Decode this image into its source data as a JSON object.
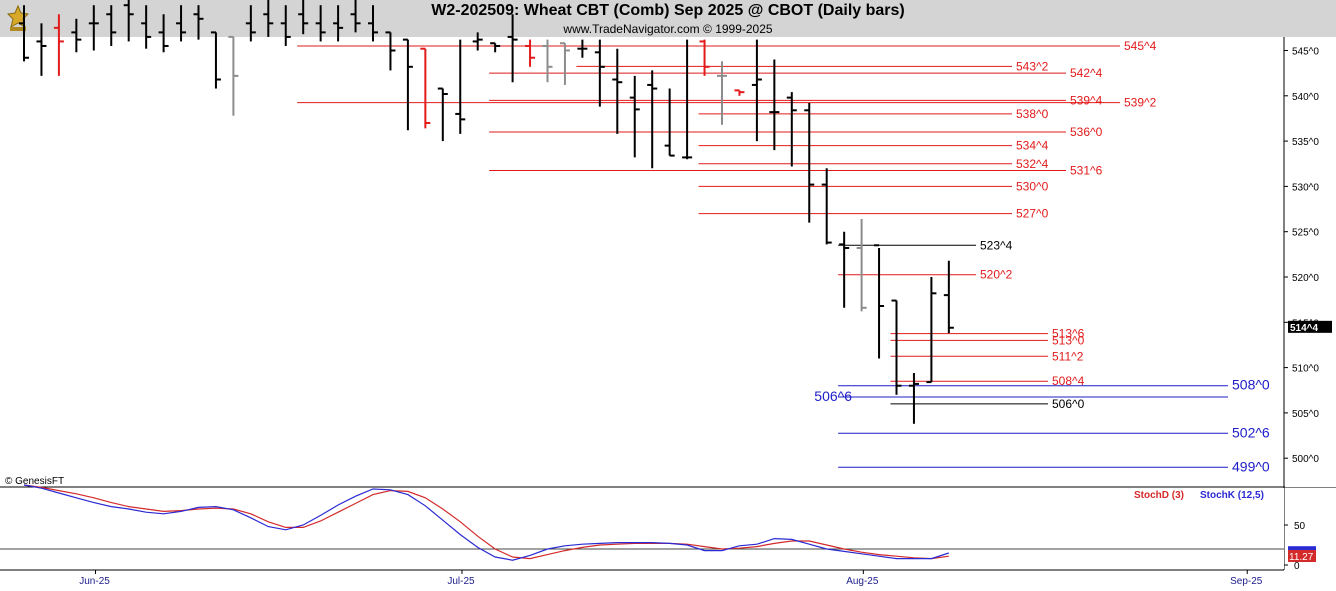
{
  "header": {
    "title": "W2-202509:  Wheat CBT (Comb) Sep 2025 @ CBOT  (Daily bars)",
    "subtitle": "www.TradeNavigator.com © 1999-2025"
  },
  "watermark": "© GenesisFT",
  "chart_data": {
    "type": "ohlc",
    "y_axis": {
      "ticks": [
        {
          "value": 545,
          "label": "545^0"
        },
        {
          "value": 540,
          "label": "540^0"
        },
        {
          "value": 535,
          "label": "535^0"
        },
        {
          "value": 530,
          "label": "530^0"
        },
        {
          "value": 525,
          "label": "525^0"
        },
        {
          "value": 520,
          "label": "520^0"
        },
        {
          "value": 515,
          "label": "515^0"
        },
        {
          "value": 510,
          "label": "510^0"
        },
        {
          "value": 505,
          "label": "505^0"
        },
        {
          "value": 500,
          "label": "500^0"
        }
      ]
    },
    "x_axis": {
      "labels": [
        {
          "label": "Jun-25",
          "bar": 4.5
        },
        {
          "label": "Jul-25",
          "bar": 25.5
        },
        {
          "label": "Aug-25",
          "bar": 48.5
        },
        {
          "label": "Sep-25",
          "bar": 70.5
        }
      ]
    },
    "last_price": {
      "label": "514^4",
      "value": 514.5
    },
    "bars": [
      {
        "o": 548,
        "h": 550,
        "l": 543.8,
        "c": 544.2,
        "color": "black"
      },
      {
        "o": 546,
        "h": 548,
        "l": 542.2,
        "c": 545.5,
        "color": "black"
      },
      {
        "o": 547.5,
        "h": 549,
        "l": 542.2,
        "c": 546,
        "color": "red"
      },
      {
        "o": 547,
        "h": 548.5,
        "l": 544.8,
        "c": 546.2,
        "color": "black"
      },
      {
        "o": 548,
        "h": 550,
        "l": 545,
        "c": 548,
        "color": "black"
      },
      {
        "o": 549,
        "h": 550,
        "l": 545.5,
        "c": 547,
        "color": "black"
      },
      {
        "o": 550,
        "h": 551,
        "l": 546,
        "c": 549,
        "color": "black"
      },
      {
        "o": 548,
        "h": 550,
        "l": 545.2,
        "c": 546.5,
        "color": "black"
      },
      {
        "o": 547,
        "h": 549,
        "l": 544.8,
        "c": 545.5,
        "color": "black"
      },
      {
        "o": 548,
        "h": 550,
        "l": 546,
        "c": 547,
        "color": "black"
      },
      {
        "o": 549,
        "h": 550,
        "l": 546.2,
        "c": 548.5,
        "color": "black"
      },
      {
        "o": 547,
        "h": 547,
        "l": 540.8,
        "c": 541.8,
        "color": "black"
      },
      {
        "o": 546.5,
        "h": 546.5,
        "l": 537.8,
        "c": 542.2,
        "color": "gray"
      },
      {
        "o": 548,
        "h": 550,
        "l": 546,
        "c": 547,
        "color": "black"
      },
      {
        "o": 549,
        "h": 551,
        "l": 546.5,
        "c": 548,
        "color": "black"
      },
      {
        "o": 548,
        "h": 550,
        "l": 545.5,
        "c": 546.5,
        "color": "black"
      },
      {
        "o": 549,
        "h": 551,
        "l": 546.8,
        "c": 548,
        "color": "black"
      },
      {
        "o": 548,
        "h": 550,
        "l": 546,
        "c": 547,
        "color": "black"
      },
      {
        "o": 548,
        "h": 550,
        "l": 546,
        "c": 547.5,
        "color": "black"
      },
      {
        "o": 549,
        "h": 551,
        "l": 547,
        "c": 548,
        "color": "black"
      },
      {
        "o": 548,
        "h": 550,
        "l": 546,
        "c": 547,
        "color": "black"
      },
      {
        "o": 547,
        "h": 547,
        "l": 542.8,
        "c": 545,
        "color": "black"
      },
      {
        "o": 546.2,
        "h": 546.2,
        "l": 536.2,
        "c": 543.2,
        "color": "black"
      },
      {
        "o": 545.2,
        "h": 545.2,
        "l": 536.4,
        "c": 537,
        "color": "red"
      },
      {
        "o": 540.8,
        "h": 540.8,
        "l": 535,
        "c": 540.2,
        "color": "black"
      },
      {
        "o": 538,
        "h": 546.2,
        "l": 535.8,
        "c": 537.4,
        "color": "black"
      },
      {
        "o": 546,
        "h": 547,
        "l": 545,
        "c": 546.2,
        "color": "black"
      },
      {
        "o": 545.8,
        "h": 545.8,
        "l": 544.8,
        "c": 545.5,
        "color": "black"
      },
      {
        "o": 546.5,
        "h": 549,
        "l": 541.5,
        "c": 546.2,
        "color": "black"
      },
      {
        "o": 545.5,
        "h": 546.2,
        "l": 543.2,
        "c": 544.2,
        "color": "red"
      },
      {
        "o": 545.5,
        "h": 546.2,
        "l": 541.5,
        "c": 543.2,
        "color": "gray"
      },
      {
        "o": 545.8,
        "h": 545.8,
        "l": 541.2,
        "c": 545,
        "color": "gray"
      },
      {
        "o": 545.2,
        "h": 546.2,
        "l": 544.2,
        "c": 545.2,
        "color": "black"
      },
      {
        "o": 544.8,
        "h": 546.2,
        "l": 538.8,
        "c": 543.2,
        "color": "black"
      },
      {
        "o": 541.8,
        "h": 545.2,
        "l": 535.8,
        "c": 541.5,
        "color": "black"
      },
      {
        "o": 539.8,
        "h": 542.2,
        "l": 533.2,
        "c": 538.5,
        "color": "black"
      },
      {
        "o": 541.2,
        "h": 542.8,
        "l": 532,
        "c": 540.8,
        "color": "black"
      },
      {
        "o": 534.5,
        "h": 540.8,
        "l": 533.4,
        "c": 533.4,
        "color": "black"
      },
      {
        "o": 533.2,
        "h": 546.2,
        "l": 533,
        "c": 533.2,
        "color": "black"
      },
      {
        "o": 546,
        "h": 546.2,
        "l": 542.2,
        "c": 543.2,
        "color": "red"
      },
      {
        "o": 542.2,
        "h": 543.8,
        "l": 536.8,
        "c": 542.2,
        "color": "gray"
      },
      {
        "o": 540.6,
        "h": 540.6,
        "l": 540,
        "c": 540.4,
        "color": "red"
      },
      {
        "o": 541.2,
        "h": 546.2,
        "l": 535,
        "c": 541.8,
        "color": "black"
      },
      {
        "o": 538.2,
        "h": 544,
        "l": 534,
        "c": 538.2,
        "color": "black"
      },
      {
        "o": 539.8,
        "h": 540.4,
        "l": 532.2,
        "c": 538.4,
        "color": "black"
      },
      {
        "o": 538.4,
        "h": 539.2,
        "l": 526,
        "c": 530.2,
        "color": "black"
      },
      {
        "o": 530.2,
        "h": 532,
        "l": 523.6,
        "c": 523.8,
        "color": "black"
      },
      {
        "o": 523.6,
        "h": 525,
        "l": 516.6,
        "c": 523.2,
        "color": "black"
      },
      {
        "o": 523.2,
        "h": 526.4,
        "l": 516.2,
        "c": 516.6,
        "color": "gray"
      },
      {
        "o": 523.5,
        "h": 523.2,
        "l": 511,
        "c": 516.8,
        "color": "black"
      },
      {
        "o": 517.4,
        "h": 517.4,
        "l": 507,
        "c": 508,
        "color": "black"
      },
      {
        "o": 508,
        "h": 509.4,
        "l": 503.8,
        "c": 508.2,
        "color": "black"
      },
      {
        "o": 508.4,
        "h": 520,
        "l": 508.4,
        "c": 518.2,
        "color": "black"
      },
      {
        "o": 518,
        "h": 521.8,
        "l": 513.8,
        "c": 514.4,
        "color": "black"
      }
    ],
    "levels": [
      {
        "value": 545.5,
        "label": "545^4",
        "color": "#e21a1a",
        "start_bar": 16
      },
      {
        "value": 543.25,
        "label": "543^2",
        "color": "#e21a1a",
        "start_bar": 32
      },
      {
        "value": 542.5,
        "label": "542^4",
        "color": "#e21a1a",
        "start_bar": 27
      },
      {
        "value": 539.5,
        "label": "539^4",
        "color": "#e21a1a",
        "start_bar": 27
      },
      {
        "value": 539.25,
        "label": "539^2",
        "color": "#e21a1a",
        "start_bar": 16
      },
      {
        "value": 538.0,
        "label": "538^0",
        "color": "#e21a1a",
        "start_bar": 39
      },
      {
        "value": 536.0,
        "label": "536^0",
        "color": "#e21a1a",
        "start_bar": 27
      },
      {
        "value": 534.5,
        "label": "534^4",
        "color": "#e21a1a",
        "start_bar": 39
      },
      {
        "value": 532.5,
        "label": "532^4",
        "color": "#e21a1a",
        "start_bar": 39
      },
      {
        "value": 531.75,
        "label": "531^6",
        "color": "#e21a1a",
        "start_bar": 27
      },
      {
        "value": 530.0,
        "label": "530^0",
        "color": "#e21a1a",
        "start_bar": 39
      },
      {
        "value": 527.0,
        "label": "527^0",
        "color": "#e21a1a",
        "start_bar": 39
      },
      {
        "value": 523.5,
        "label": "523^4",
        "color": "#000000",
        "start_bar": 47
      },
      {
        "value": 520.25,
        "label": "520^2",
        "color": "#e21a1a",
        "start_bar": 47
      },
      {
        "value": 513.75,
        "label": "513^6",
        "color": "#e21a1a",
        "start_bar": 50
      },
      {
        "value": 513.0,
        "label": "513^0",
        "color": "#e21a1a",
        "start_bar": 50
      },
      {
        "value": 511.25,
        "label": "511^2",
        "color": "#e21a1a",
        "start_bar": 50
      },
      {
        "value": 508.5,
        "label": "508^4",
        "color": "#e21a1a",
        "start_bar": 50
      },
      {
        "value": 508.0,
        "label": "508^0",
        "color": "#1c1cc8",
        "start_bar": 47
      },
      {
        "value": 506.75,
        "label": "506^6",
        "color": "#1c1cc8",
        "start_bar": 47
      },
      {
        "value": 506.0,
        "label": "506^0",
        "color": "#000000",
        "start_bar": 50
      },
      {
        "value": 502.75,
        "label": "502^6",
        "color": "#1c1cc8",
        "start_bar": 47
      },
      {
        "value": 499.0,
        "label": "499^0",
        "color": "#1c1cc8",
        "start_bar": 47
      }
    ],
    "stochastic": {
      "legend": [
        {
          "name": "StochD (3)",
          "color": "#d42a2a"
        },
        {
          "name": "StochK (12,5)",
          "color": "#2a2ad4"
        }
      ],
      "ticks": [
        {
          "value": 50,
          "label": "50"
        },
        {
          "value": 0,
          "label": "0"
        }
      ],
      "reference_level": 20,
      "last_value": {
        "label": "11.27",
        "value": 11.27
      },
      "k": [
        100,
        96,
        90,
        84,
        78,
        73,
        70,
        66,
        64,
        67,
        72,
        73,
        69,
        59,
        48,
        44,
        50,
        62,
        75,
        86,
        95,
        94,
        88,
        74,
        56,
        38,
        22,
        10,
        6,
        12,
        20,
        24,
        26,
        27,
        28,
        28,
        28,
        27,
        25,
        18,
        18,
        24,
        26,
        33,
        32,
        26,
        20,
        17,
        14,
        11,
        8,
        8,
        8,
        15
      ],
      "d": [
        100,
        97,
        93,
        89,
        84,
        78,
        73,
        70,
        67,
        68,
        70,
        71,
        70,
        64,
        54,
        47,
        47,
        55,
        66,
        77,
        88,
        93,
        92,
        84,
        70,
        54,
        36,
        20,
        10,
        8,
        13,
        18,
        22,
        25,
        26,
        27,
        27,
        27,
        26,
        23,
        20,
        21,
        23,
        27,
        30,
        30,
        25,
        20,
        16,
        13,
        11,
        9,
        8,
        11
      ]
    }
  }
}
